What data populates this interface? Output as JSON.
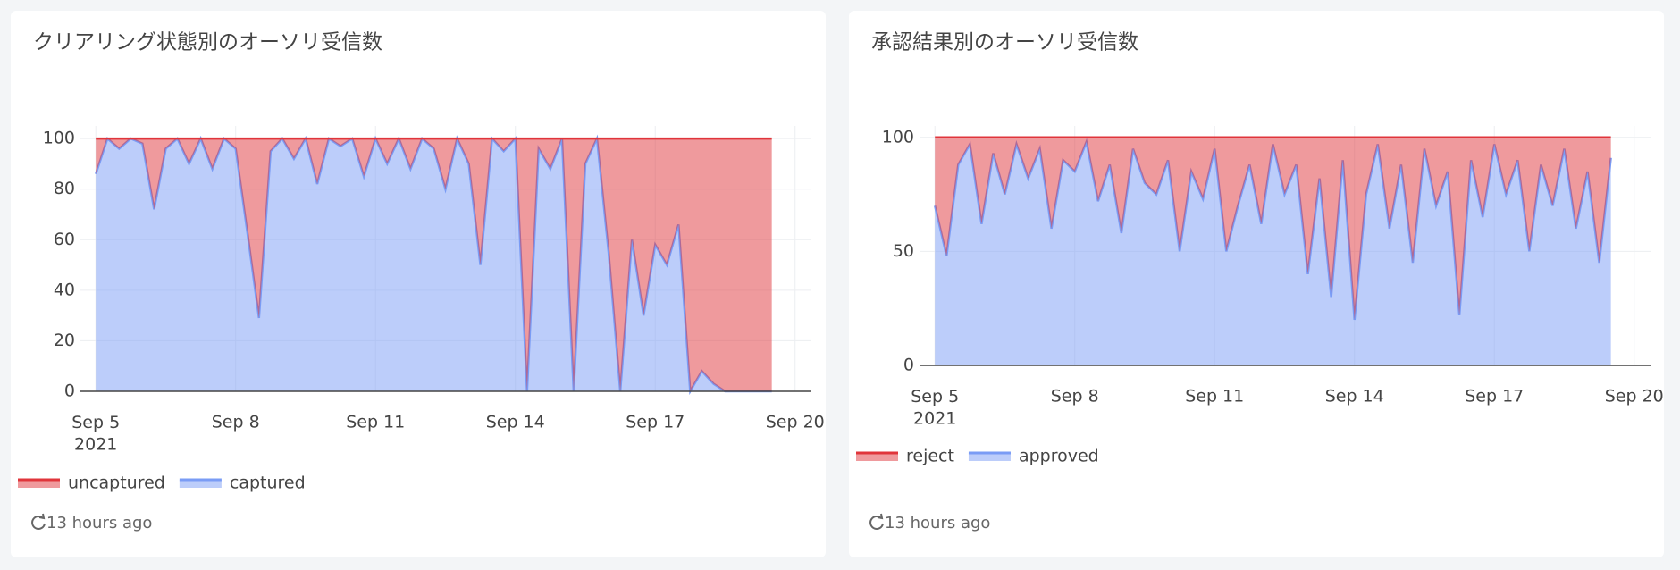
{
  "chart_data": [
    {
      "type": "area",
      "stacked": true,
      "title": "クリアリング状態別のオーソリ受信数",
      "updated": "13 hours ago",
      "x": [
        5.0,
        5.25,
        5.5,
        5.75,
        6.0,
        6.25,
        6.5,
        6.75,
        7.0,
        7.25,
        7.5,
        7.75,
        8.0,
        8.25,
        8.5,
        8.75,
        9.0,
        9.25,
        9.5,
        9.75,
        10.0,
        10.25,
        10.5,
        10.75,
        11.0,
        11.25,
        11.5,
        11.75,
        12.0,
        12.25,
        12.5,
        12.75,
        13.0,
        13.25,
        13.5,
        13.75,
        14.0,
        14.25,
        14.5,
        14.75,
        15.0,
        15.25,
        15.5,
        15.75,
        16.0,
        16.25,
        16.5,
        16.75,
        17.0,
        17.25,
        17.5,
        17.75,
        18.0,
        18.25,
        18.5,
        18.75,
        19.0,
        19.25,
        19.5
      ],
      "series": [
        {
          "name": "uncaptured",
          "color": "#e0353b",
          "values": [
            14,
            0,
            4,
            0,
            2,
            28,
            4,
            0,
            10,
            0,
            12,
            0,
            4,
            37,
            71,
            5,
            0,
            8,
            0,
            18,
            0,
            3,
            0,
            15,
            0,
            10,
            0,
            12,
            0,
            4,
            20,
            0,
            10,
            50,
            0,
            5,
            0,
            100,
            4,
            12,
            0,
            100,
            10,
            0,
            45,
            100,
            40,
            70,
            42,
            50,
            34,
            100,
            92,
            97,
            100,
            100,
            100,
            100,
            100
          ]
        },
        {
          "name": "captured",
          "color": "#7a9cf5",
          "values": [
            86,
            100,
            96,
            100,
            98,
            72,
            96,
            100,
            90,
            100,
            88,
            100,
            96,
            63,
            29,
            95,
            100,
            92,
            100,
            82,
            100,
            97,
            100,
            85,
            100,
            90,
            100,
            88,
            100,
            96,
            80,
            100,
            90,
            50,
            100,
            95,
            100,
            0,
            96,
            88,
            100,
            0,
            90,
            100,
            55,
            0,
            60,
            30,
            58,
            50,
            66,
            0,
            8,
            3,
            0,
            0,
            0,
            0,
            0
          ]
        }
      ],
      "xlim": [
        4.67,
        20.35
      ],
      "ylim": [
        0,
        105
      ],
      "xticks": [
        {
          "value": 5,
          "label": "Sep 5\n2021"
        },
        {
          "value": 8,
          "label": "Sep 8"
        },
        {
          "value": 11,
          "label": "Sep 11"
        },
        {
          "value": 14,
          "label": "Sep 14"
        },
        {
          "value": 17,
          "label": "Sep 17"
        },
        {
          "value": 20,
          "label": "Sep 20"
        }
      ],
      "yticks": [
        0,
        20,
        40,
        60,
        80,
        100
      ],
      "grid": true
    },
    {
      "type": "area",
      "stacked": true,
      "title": "承認結果別のオーソリ受信数",
      "updated": "13 hours ago",
      "x": [
        5.0,
        5.25,
        5.5,
        5.75,
        6.0,
        6.25,
        6.5,
        6.75,
        7.0,
        7.25,
        7.5,
        7.75,
        8.0,
        8.25,
        8.5,
        8.75,
        9.0,
        9.25,
        9.5,
        9.75,
        10.0,
        10.25,
        10.5,
        10.75,
        11.0,
        11.25,
        11.5,
        11.75,
        12.0,
        12.25,
        12.5,
        12.75,
        13.0,
        13.25,
        13.5,
        13.75,
        14.0,
        14.25,
        14.5,
        14.75,
        15.0,
        15.25,
        15.5,
        15.75,
        16.0,
        16.25,
        16.5,
        16.75,
        17.0,
        17.25,
        17.5,
        17.75,
        18.0,
        18.25,
        18.5,
        18.75,
        19.0,
        19.25,
        19.5
      ],
      "series": [
        {
          "name": "reject",
          "color": "#e0353b",
          "values": [
            30,
            52,
            12,
            3,
            38,
            7,
            25,
            3,
            18,
            5,
            40,
            10,
            15,
            2,
            28,
            12,
            42,
            5,
            20,
            25,
            10,
            50,
            15,
            27,
            5,
            50,
            30,
            12,
            38,
            3,
            25,
            12,
            60,
            18,
            70,
            10,
            80,
            25,
            3,
            40,
            12,
            55,
            5,
            30,
            15,
            78,
            10,
            35,
            3,
            25,
            10,
            50,
            12,
            30,
            5,
            40,
            15,
            55,
            9
          ]
        },
        {
          "name": "approved",
          "color": "#7a9cf5",
          "values": [
            70,
            48,
            88,
            97,
            62,
            93,
            75,
            97,
            82,
            95,
            60,
            90,
            85,
            98,
            72,
            88,
            58,
            95,
            80,
            75,
            90,
            50,
            85,
            73,
            95,
            50,
            70,
            88,
            62,
            97,
            75,
            88,
            40,
            82,
            30,
            90,
            20,
            75,
            97,
            60,
            88,
            45,
            95,
            70,
            85,
            22,
            90,
            65,
            97,
            75,
            90,
            50,
            88,
            70,
            95,
            60,
            85,
            45,
            91
          ]
        }
      ],
      "xlim": [
        4.67,
        20.35
      ],
      "ylim": [
        0,
        105
      ],
      "xticks": [
        {
          "value": 5,
          "label": "Sep 5\n2021"
        },
        {
          "value": 8,
          "label": "Sep 8"
        },
        {
          "value": 11,
          "label": "Sep 11"
        },
        {
          "value": 14,
          "label": "Sep 14"
        },
        {
          "value": 17,
          "label": "Sep 17"
        },
        {
          "value": 20,
          "label": "Sep 20"
        }
      ],
      "yticks": [
        0,
        50,
        100
      ],
      "grid": true
    }
  ]
}
